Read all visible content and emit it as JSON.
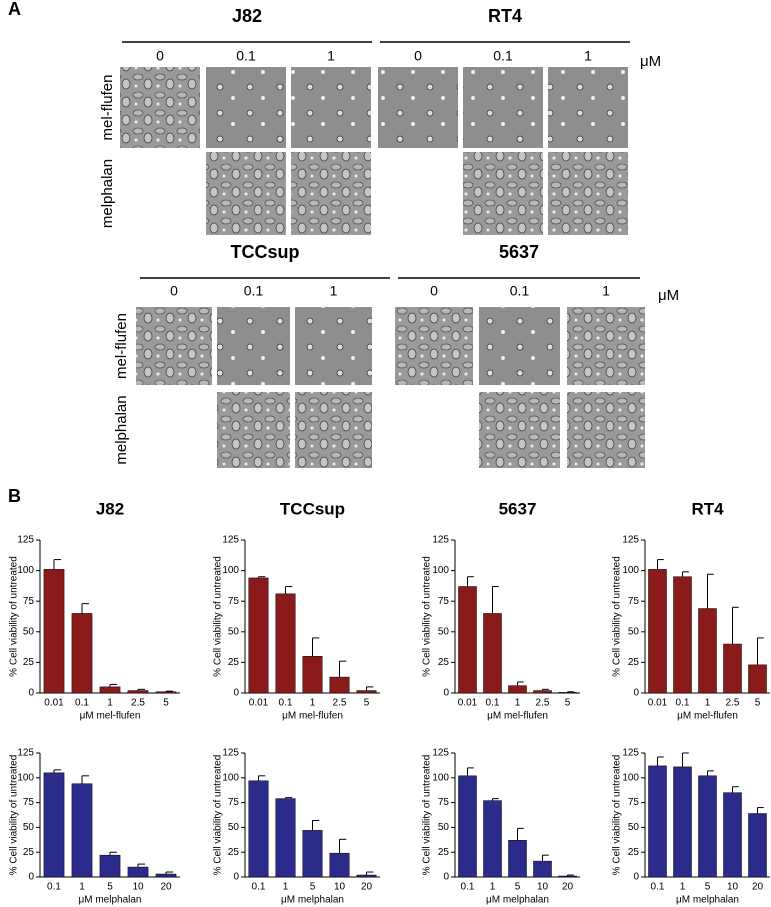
{
  "panel_a": {
    "label": "A",
    "blocks": [
      {
        "groups": [
          {
            "name": "J82",
            "doses": [
              "0",
              "0.1",
              "1"
            ]
          },
          {
            "name": "RT4",
            "doses": [
              "0",
              "0.1",
              "1"
            ]
          }
        ],
        "unit": "μM",
        "row_labels": [
          "mel-flufen",
          "melphalan"
        ]
      },
      {
        "groups": [
          {
            "name": "TCCsup",
            "doses": [
              "0",
              "0.1",
              "1"
            ]
          },
          {
            "name": "5637",
            "doses": [
              "0",
              "0.1",
              "1"
            ]
          }
        ],
        "unit": "μM",
        "row_labels": [
          "mel-flufen",
          "melphalan"
        ]
      }
    ]
  },
  "panel_b": {
    "label": "B"
  },
  "chart_data": [
    {
      "type": "bar",
      "title": "J82",
      "y_label": "% Cell viability of untreated",
      "x_label": "μM mel-flufen",
      "categories": [
        "0.01",
        "0.1",
        "1",
        "2.5",
        "5"
      ],
      "values": [
        101,
        65,
        5,
        2,
        1
      ],
      "errors": [
        8,
        8,
        2,
        1,
        0.5
      ],
      "color": "#8b1a1a",
      "ylim": [
        0,
        125
      ],
      "yticks": [
        0,
        25,
        50,
        75,
        100,
        125
      ]
    },
    {
      "type": "bar",
      "title": "TCCsup",
      "y_label": "% Cell viability of untreated",
      "x_label": "μM mel-flufen",
      "categories": [
        "0.01",
        "0.1",
        "1",
        "2.5",
        "5"
      ],
      "values": [
        94,
        81,
        30,
        13,
        2
      ],
      "errors": [
        1,
        6,
        15,
        13,
        3
      ],
      "color": "#8b1a1a",
      "ylim": [
        0,
        125
      ],
      "yticks": [
        0,
        25,
        50,
        75,
        100,
        125
      ]
    },
    {
      "type": "bar",
      "title": "5637",
      "y_label": "% Cell viability of untreated",
      "x_label": "μM mel-flufen",
      "categories": [
        "0.01",
        "0.1",
        "1",
        "2.5",
        "5"
      ],
      "values": [
        87,
        65,
        6,
        2,
        0.5
      ],
      "errors": [
        8,
        22,
        3,
        1,
        0.5
      ],
      "color": "#8b1a1a",
      "ylim": [
        0,
        125
      ],
      "yticks": [
        0,
        25,
        50,
        75,
        100,
        125
      ]
    },
    {
      "type": "bar",
      "title": "RT4",
      "y_label": "% Cell viability of untreated",
      "x_label": "μM mel-flufen",
      "categories": [
        "0.01",
        "0.1",
        "1",
        "2.5",
        "5"
      ],
      "values": [
        101,
        95,
        69,
        40,
        23
      ],
      "errors": [
        8,
        4,
        28,
        30,
        22
      ],
      "color": "#8b1a1a",
      "ylim": [
        0,
        125
      ],
      "yticks": [
        0,
        25,
        50,
        75,
        100,
        125
      ]
    },
    {
      "type": "bar",
      "y_label": "% Cell viability of untreated",
      "x_label": "μM melphalan",
      "categories": [
        "0.1",
        "1",
        "5",
        "10",
        "20"
      ],
      "values": [
        105,
        94,
        22,
        10,
        3
      ],
      "errors": [
        3,
        8,
        3,
        3,
        2
      ],
      "color": "#2b2b8c",
      "ylim": [
        0,
        125
      ],
      "yticks": [
        0,
        25,
        50,
        75,
        100,
        125
      ]
    },
    {
      "type": "bar",
      "y_label": "% Cell viability of untreated",
      "x_label": "μM melphalan",
      "categories": [
        "0.1",
        "1",
        "5",
        "10",
        "20"
      ],
      "values": [
        97,
        79,
        47,
        24,
        2
      ],
      "errors": [
        5,
        1,
        10,
        14,
        3
      ],
      "color": "#2b2b8c",
      "ylim": [
        0,
        125
      ],
      "yticks": [
        0,
        25,
        50,
        75,
        100,
        125
      ]
    },
    {
      "type": "bar",
      "y_label": "% Cell viability of untreated",
      "x_label": "μM melphalan",
      "categories": [
        "0.1",
        "1",
        "5",
        "10",
        "20"
      ],
      "values": [
        102,
        77,
        37,
        16,
        1
      ],
      "errors": [
        8,
        2,
        12,
        6,
        1
      ],
      "color": "#2b2b8c",
      "ylim": [
        0,
        125
      ],
      "yticks": [
        0,
        25,
        50,
        75,
        100,
        125
      ]
    },
    {
      "type": "bar",
      "y_label": "% Cell viability of untreated",
      "x_label": "μM melphalan",
      "categories": [
        "0.1",
        "1",
        "5",
        "10",
        "20"
      ],
      "values": [
        112,
        111,
        102,
        85,
        64
      ],
      "errors": [
        9,
        14,
        5,
        6,
        6
      ],
      "color": "#2b2b8c",
      "ylim": [
        0,
        125
      ],
      "yticks": [
        0,
        25,
        50,
        75,
        100,
        125
      ]
    }
  ]
}
